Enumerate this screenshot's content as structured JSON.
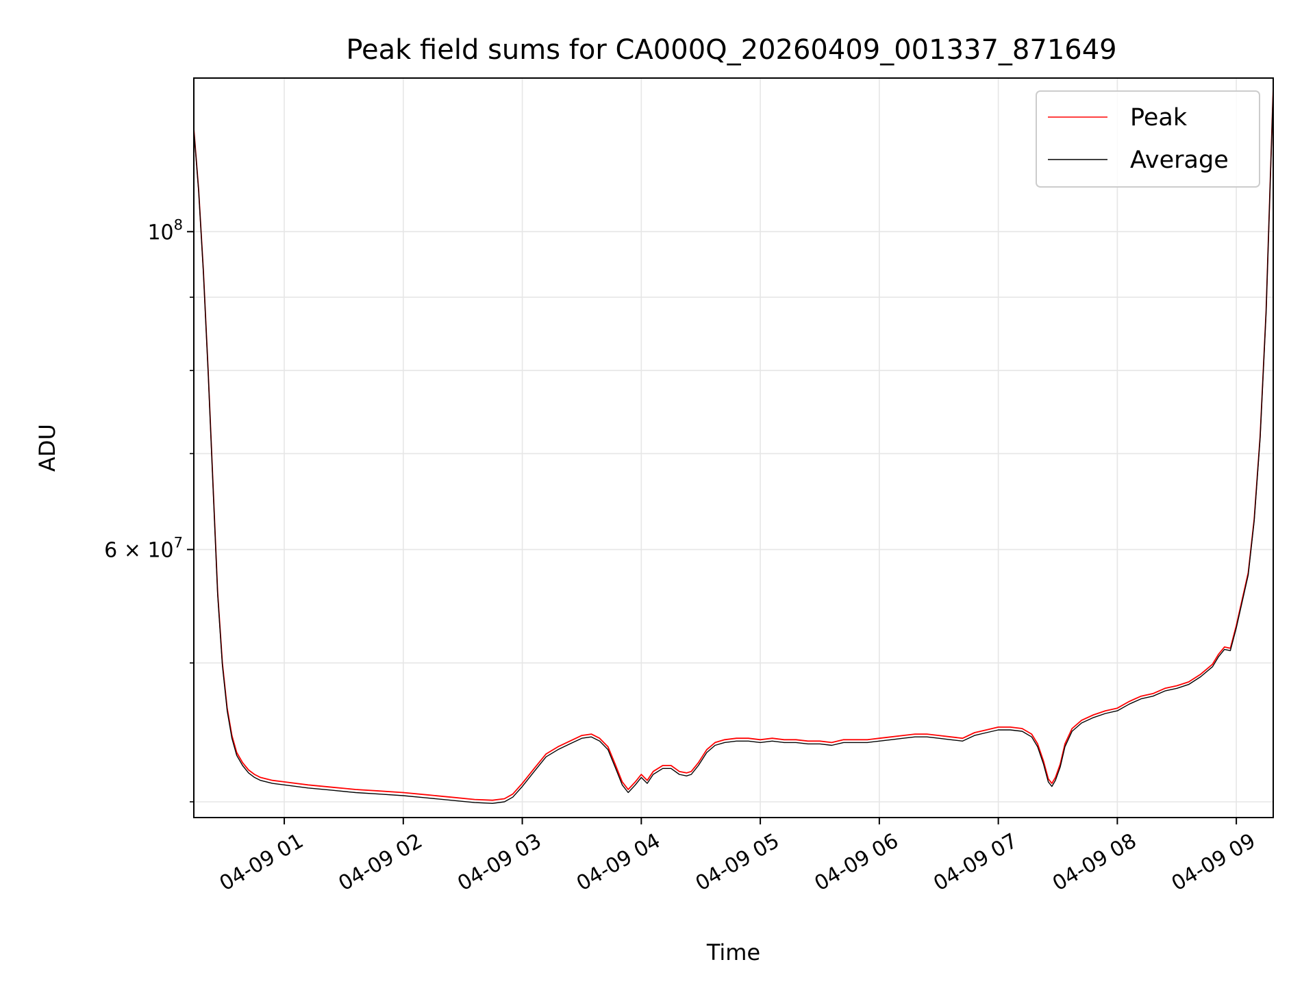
{
  "chart_data": {
    "type": "line",
    "title": "Peak field sums for CA000Q_20260409_001337_871649",
    "xlabel": "Time",
    "ylabel": "ADU",
    "xlim_hours": [
      0.24,
      9.31
    ],
    "ylim": [
      39000000,
      128000000
    ],
    "yscale": "log",
    "grid": true,
    "legend_position": "top-right",
    "x_ticks": [
      {
        "hour": 1,
        "label": "04-09 01"
      },
      {
        "hour": 2,
        "label": "04-09 02"
      },
      {
        "hour": 3,
        "label": "04-09 03"
      },
      {
        "hour": 4,
        "label": "04-09 04"
      },
      {
        "hour": 5,
        "label": "04-09 05"
      },
      {
        "hour": 6,
        "label": "04-09 06"
      },
      {
        "hour": 7,
        "label": "04-09 07"
      },
      {
        "hour": 8,
        "label": "04-09 08"
      },
      {
        "hour": 9,
        "label": "04-09 09"
      }
    ],
    "y_major_ticks": [
      {
        "value": 100000000,
        "base": "10",
        "exp": "8",
        "prefix": ""
      },
      {
        "value": 60000000,
        "base": "10",
        "exp": "7",
        "prefix": "6 × "
      }
    ],
    "y_minor_ticks": [
      40000000,
      50000000,
      70000000,
      80000000,
      90000000
    ],
    "series": [
      {
        "name": "Peak",
        "color": "#ff0000",
        "x_hours": [
          0.24,
          0.28,
          0.32,
          0.36,
          0.4,
          0.44,
          0.48,
          0.52,
          0.56,
          0.6,
          0.65,
          0.7,
          0.75,
          0.8,
          0.9,
          1.0,
          1.2,
          1.4,
          1.6,
          1.8,
          2.0,
          2.2,
          2.4,
          2.6,
          2.75,
          2.85,
          2.92,
          3.0,
          3.1,
          3.2,
          3.3,
          3.4,
          3.5,
          3.58,
          3.65,
          3.72,
          3.78,
          3.84,
          3.89,
          3.95,
          4.0,
          4.05,
          4.1,
          4.18,
          4.25,
          4.32,
          4.38,
          4.42,
          4.48,
          4.55,
          4.62,
          4.7,
          4.8,
          4.9,
          5.0,
          5.1,
          5.2,
          5.3,
          5.4,
          5.5,
          5.6,
          5.7,
          5.8,
          5.9,
          6.0,
          6.1,
          6.2,
          6.3,
          6.4,
          6.5,
          6.6,
          6.7,
          6.8,
          6.9,
          7.0,
          7.1,
          7.2,
          7.28,
          7.33,
          7.38,
          7.42,
          7.45,
          7.48,
          7.52,
          7.56,
          7.62,
          7.7,
          7.8,
          7.9,
          8.0,
          8.1,
          8.2,
          8.3,
          8.4,
          8.5,
          8.6,
          8.7,
          8.8,
          8.85,
          8.9,
          8.95,
          9.0,
          9.05,
          9.1,
          9.15,
          9.2,
          9.25,
          9.31
        ],
        "y": [
          118000000,
          107000000,
          94000000,
          80000000,
          67000000,
          56000000,
          50000000,
          46500000,
          44500000,
          43300000,
          42600000,
          42100000,
          41800000,
          41600000,
          41400000,
          41300000,
          41100000,
          40950000,
          40800000,
          40700000,
          40600000,
          40450000,
          40300000,
          40150000,
          40100000,
          40200000,
          40500000,
          41200000,
          42200000,
          43200000,
          43700000,
          44100000,
          44500000,
          44600000,
          44300000,
          43700000,
          42500000,
          41300000,
          40800000,
          41300000,
          41800000,
          41400000,
          42000000,
          42400000,
          42400000,
          42000000,
          41900000,
          42000000,
          42600000,
          43500000,
          44000000,
          44200000,
          44300000,
          44300000,
          44200000,
          44300000,
          44200000,
          44200000,
          44100000,
          44100000,
          44000000,
          44200000,
          44200000,
          44200000,
          44300000,
          44400000,
          44500000,
          44600000,
          44600000,
          44500000,
          44400000,
          44300000,
          44700000,
          44900000,
          45100000,
          45100000,
          45000000,
          44600000,
          43900000,
          42700000,
          41500000,
          41200000,
          41600000,
          42500000,
          43900000,
          45000000,
          45600000,
          46000000,
          46300000,
          46500000,
          47000000,
          47400000,
          47600000,
          48000000,
          48200000,
          48500000,
          49100000,
          49900000,
          50700000,
          51300000,
          51200000,
          53100000,
          55400000,
          57800000,
          63000000,
          72000000,
          88000000,
          126000000
        ]
      },
      {
        "name": "Average",
        "color": "#000000",
        "x_hours": [
          0.24,
          0.28,
          0.32,
          0.36,
          0.4,
          0.44,
          0.48,
          0.52,
          0.56,
          0.6,
          0.65,
          0.7,
          0.75,
          0.8,
          0.9,
          1.0,
          1.2,
          1.4,
          1.6,
          1.8,
          2.0,
          2.2,
          2.4,
          2.6,
          2.75,
          2.85,
          2.92,
          3.0,
          3.1,
          3.2,
          3.3,
          3.4,
          3.5,
          3.58,
          3.65,
          3.72,
          3.78,
          3.84,
          3.89,
          3.95,
          4.0,
          4.05,
          4.1,
          4.18,
          4.25,
          4.32,
          4.38,
          4.42,
          4.48,
          4.55,
          4.62,
          4.7,
          4.8,
          4.9,
          5.0,
          5.1,
          5.2,
          5.3,
          5.4,
          5.5,
          5.6,
          5.7,
          5.8,
          5.9,
          6.0,
          6.1,
          6.2,
          6.3,
          6.4,
          6.5,
          6.6,
          6.7,
          6.8,
          6.9,
          7.0,
          7.1,
          7.2,
          7.28,
          7.33,
          7.38,
          7.42,
          7.45,
          7.48,
          7.52,
          7.56,
          7.62,
          7.7,
          7.8,
          7.9,
          8.0,
          8.1,
          8.2,
          8.3,
          8.4,
          8.5,
          8.6,
          8.7,
          8.8,
          8.85,
          8.9,
          8.95,
          9.0,
          9.05,
          9.1,
          9.15,
          9.2,
          9.25,
          9.31
        ],
        "y": [
          117800000,
          106800000,
          93800000,
          79800000,
          66800000,
          55800000,
          49800000,
          46300000,
          44300000,
          43100000,
          42400000,
          41900000,
          41600000,
          41400000,
          41200000,
          41100000,
          40900000,
          40750000,
          40600000,
          40500000,
          40400000,
          40250000,
          40100000,
          39950000,
          39900000,
          40000000,
          40300000,
          41000000,
          42000000,
          43000000,
          43500000,
          43900000,
          44300000,
          44400000,
          44100000,
          43500000,
          42300000,
          41100000,
          40600000,
          41100000,
          41600000,
          41200000,
          41800000,
          42200000,
          42200000,
          41800000,
          41700000,
          41800000,
          42400000,
          43300000,
          43800000,
          44000000,
          44100000,
          44100000,
          44000000,
          44100000,
          44000000,
          44000000,
          43900000,
          43900000,
          43800000,
          44000000,
          44000000,
          44000000,
          44100000,
          44200000,
          44300000,
          44400000,
          44400000,
          44300000,
          44200000,
          44100000,
          44500000,
          44700000,
          44900000,
          44900000,
          44800000,
          44400000,
          43700000,
          42500000,
          41300000,
          41000000,
          41400000,
          42300000,
          43700000,
          44800000,
          45400000,
          45800000,
          46100000,
          46300000,
          46800000,
          47200000,
          47400000,
          47800000,
          48000000,
          48300000,
          48900000,
          49700000,
          50500000,
          51100000,
          51000000,
          52900000,
          55200000,
          57600000,
          62800000,
          71800000,
          87800000,
          125800000
        ]
      }
    ],
    "legend": [
      {
        "label": "Peak",
        "color": "#ff0000"
      },
      {
        "label": "Average",
        "color": "#000000"
      }
    ]
  }
}
